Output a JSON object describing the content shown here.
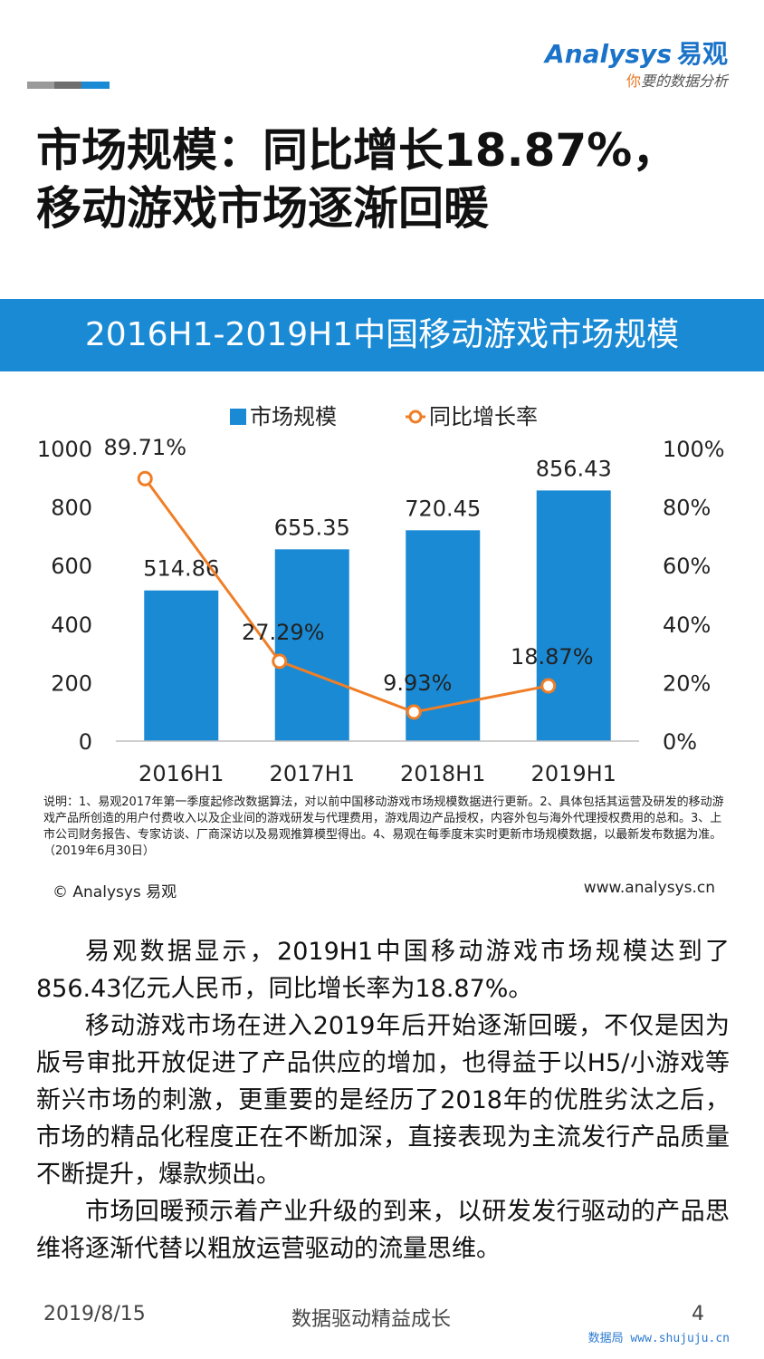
{
  "brand": {
    "logo_name": "Analysys",
    "logo_cn": "易观",
    "tagline_accent": "你",
    "tagline": "要的数据分析",
    "colors": {
      "accent": "#1a8ad4",
      "line": "#f07e26",
      "bar": "#1a8ad4"
    }
  },
  "page": {
    "title_line1": "市场规模：同比增长18.87%，",
    "title_line2": "移动游戏市场逐渐回暖",
    "banner_title": "2016H1-2019H1中国移动游戏市场规模"
  },
  "chart_data": {
    "type": "bar",
    "title": "2016H1-2019H1中国移动游戏市场规模",
    "categories": [
      "2016H1",
      "2017H1",
      "2018H1",
      "2019H1"
    ],
    "series": [
      {
        "name": "市场规模",
        "kind": "bar",
        "axis": "left",
        "values": [
          514.86,
          655.35,
          720.45,
          856.43
        ],
        "labels": [
          "514.86",
          "655.35",
          "720.45",
          "856.43"
        ]
      },
      {
        "name": "同比增长率",
        "kind": "line",
        "axis": "right",
        "values": [
          89.71,
          27.29,
          9.93,
          18.87
        ],
        "labels": [
          "89.71%",
          "27.29%",
          "9.93%",
          "18.87%"
        ]
      }
    ],
    "ylim": [
      0,
      1000
    ],
    "y_ticks": [
      "0",
      "200",
      "400",
      "600",
      "800",
      "1000"
    ],
    "y2lim": [
      0,
      100
    ],
    "y2_ticks": [
      "0%",
      "20%",
      "40%",
      "60%",
      "80%",
      "100%"
    ],
    "legend": "top-center",
    "grid": false
  },
  "note": "说明：1、易观2017年第一季度起修改数据算法，对以前中国移动游戏市场规模数据进行更新。2、具体包括其运营及研发的移动游戏产品所创造的用户付费收入以及企业间的游戏研发与代理费用，游戏周边产品授权，内容外包与海外代理授权费用的总和。3、上市公司财务报告、专家访谈、厂商深访以及易观推算模型得出。4、易观在每季度末实时更新市场规模数据，以最新发布数据为准。（2019年6月30日）",
  "source": {
    "left": "© Analysys 易观",
    "right": "www.analysys.cn"
  },
  "body": {
    "p1": "易观数据显示，2019H1中国移动游戏市场规模达到了856.43亿元人民币，同比增长率为18.87%。",
    "p2": "移动游戏市场在进入2019年后开始逐渐回暖，不仅是因为版号审批开放促进了产品供应的增加，也得益于以H5/小游戏等新兴市场的刺激，更重要的是经历了2018年的优胜劣汰之后，市场的精品化程度正在不断加深，直接表现为主流发行产品质量不断提升，爆款频出。",
    "p3": "市场回暖预示着产业升级的到来，以研发发行驱动的产品思维将逐渐代替以粗放运营驱动的流量思维。"
  },
  "footer": {
    "date": "2019/8/15",
    "slogan": "数据驱动精益成长",
    "page_number": "4",
    "watermark": "数据局 www.shujuju.cn"
  }
}
